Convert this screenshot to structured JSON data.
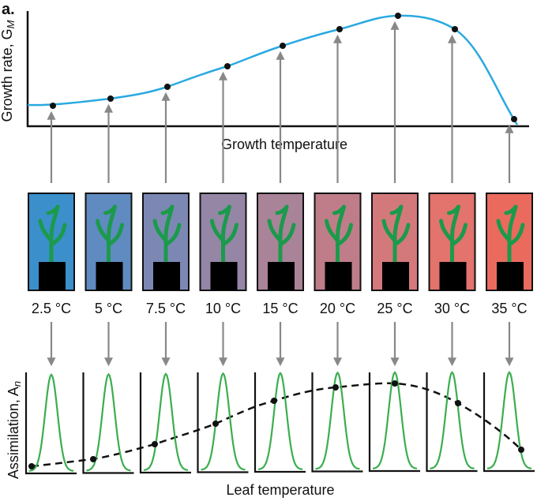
{
  "panel_label": "a.",
  "top": {
    "y_label": {
      "text": "Growth rate, G",
      "subscript": "M"
    },
    "x_label": "Growth temperature"
  },
  "temperatures": [
    "2.5 °C",
    "5 °C",
    "7.5 °C",
    "10 °C",
    "15 °C",
    "20 °C",
    "25 °C",
    "30 °C",
    "35 °C"
  ],
  "bottom": {
    "y_label": {
      "text": "Assimilation, A",
      "subscript": "n"
    },
    "x_label": "Leaf temperature"
  }
}
